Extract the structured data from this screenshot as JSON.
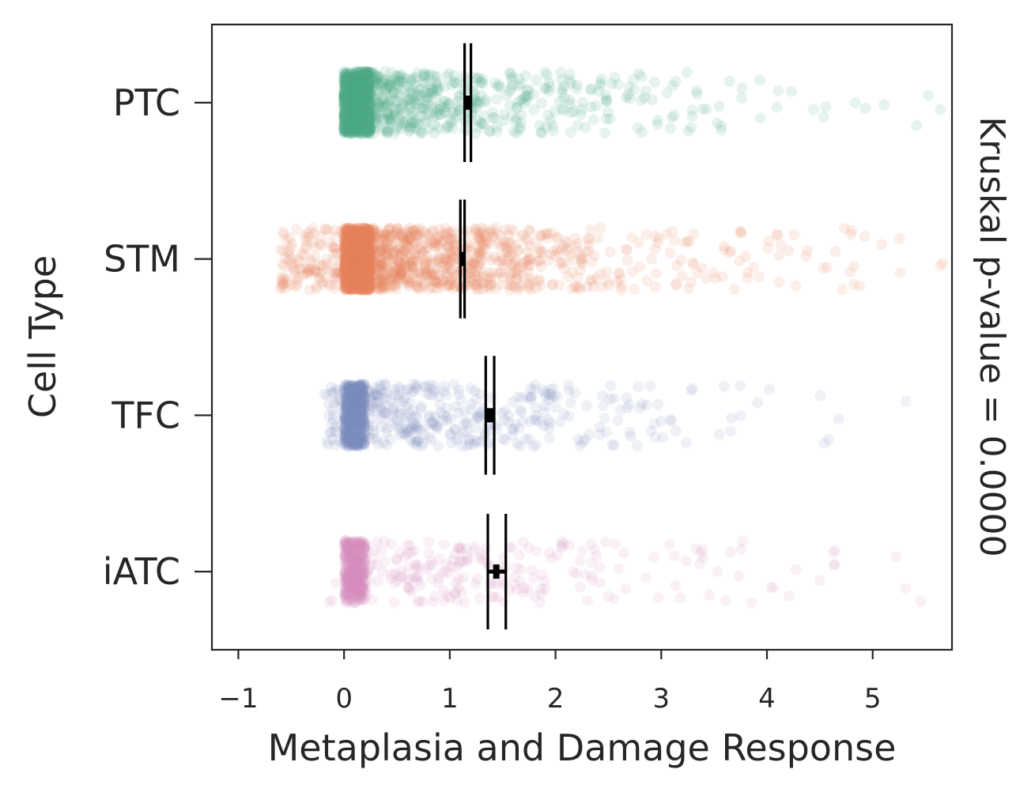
{
  "chart_data": {
    "type": "strip",
    "orientation": "horizontal",
    "title": "",
    "xlabel": "Metaplasia and Damage Response",
    "ylabel": "Cell Type",
    "right_annotation": "Kruskal p-value = 0.0000",
    "xlim": [
      -1.25,
      5.75
    ],
    "xticks": [
      -1,
      0,
      1,
      2,
      3,
      4,
      5
    ],
    "xtick_labels": [
      "−1",
      "0",
      "1",
      "2",
      "3",
      "4",
      "5"
    ],
    "categories": [
      "PTC",
      "STM",
      "TFC",
      "iATC"
    ],
    "series": [
      {
        "name": "PTC",
        "color": "#4fa88a",
        "n_points": 1400,
        "lo": 0.0,
        "scale": 1.15,
        "core_frac": 0.55,
        "core_width": 0.25,
        "neg_tail": 0.02,
        "alpha": 0.14,
        "mean": 1.17,
        "ci": [
          1.14,
          1.2
        ],
        "bar_half_height": 0.38
      },
      {
        "name": "STM",
        "color": "#e8825f",
        "n_points": 2200,
        "lo": -0.6,
        "scale": 1.1,
        "core_frac": 0.55,
        "core_width": 0.25,
        "neg_tail": 0.06,
        "alpha": 0.13,
        "mean": 1.12,
        "ci": [
          1.1,
          1.14
        ],
        "bar_half_height": 0.38
      },
      {
        "name": "TFC",
        "color": "#7b8ebf",
        "n_points": 900,
        "lo": -0.2,
        "scale": 1.35,
        "core_frac": 0.55,
        "core_width": 0.2,
        "neg_tail": 0.03,
        "alpha": 0.12,
        "mean": 1.38,
        "ci": [
          1.34,
          1.42
        ],
        "bar_half_height": 0.38
      },
      {
        "name": "iATC",
        "color": "#d68bbf",
        "n_points": 600,
        "lo": -0.15,
        "scale": 1.5,
        "core_frac": 0.55,
        "core_width": 0.2,
        "neg_tail": 0.02,
        "alpha": 0.12,
        "mean": 1.44,
        "ci": [
          1.36,
          1.53
        ],
        "bar_half_height": 0.37
      }
    ],
    "grid": false,
    "legend": "none"
  }
}
